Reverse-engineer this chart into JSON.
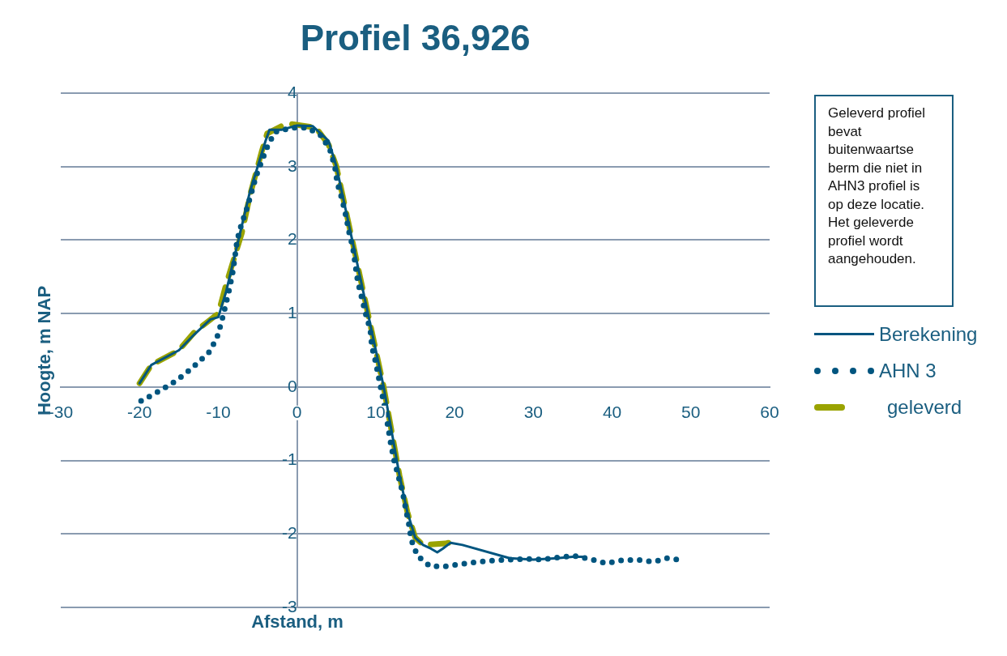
{
  "chart_data": {
    "type": "line",
    "title": "Profiel 36,926",
    "xlabel": "Afstand, m",
    "ylabel": "Hoogte, m NAP",
    "annotations": [
      "Geleverd profiel bevat buitenwaartse berm die niet in AHN3 profiel is op deze locatie. Het geleverde profiel wordt aangehouden."
    ],
    "xlim": [
      -30,
      60
    ],
    "xticks": [
      -30,
      -20,
      -10,
      0,
      10,
      20,
      30,
      40,
      50,
      60
    ],
    "ylim": [
      -3,
      4
    ],
    "yticks": [
      -3,
      -2,
      -1,
      0,
      1,
      2,
      3,
      4
    ],
    "grid": "y",
    "legend": "right",
    "marker": "none",
    "series": [
      {
        "name": "Berekening",
        "color": "#00557f",
        "line_style": "solid",
        "x": [
          -20,
          -18.5,
          -15,
          -13,
          -11,
          -10,
          -9,
          -8,
          -7,
          -6,
          -5,
          -4,
          -3.5,
          -2,
          0,
          2,
          4,
          5,
          6,
          7,
          8,
          9,
          10,
          11,
          12,
          13,
          14,
          15,
          16,
          17,
          17.8,
          18.5,
          19.5,
          21,
          27,
          30,
          33,
          35,
          36.3
        ],
        "values": [
          0.05,
          0.3,
          0.5,
          0.72,
          0.92,
          0.95,
          1.3,
          1.75,
          2.2,
          2.65,
          3.0,
          3.35,
          3.5,
          3.5,
          3.56,
          3.55,
          3.35,
          3.0,
          2.5,
          2.0,
          1.5,
          1.0,
          0.5,
          0.0,
          -0.6,
          -1.2,
          -1.7,
          -2.05,
          -2.15,
          -2.2,
          -2.25,
          -2.2,
          -2.12,
          -2.15,
          -2.33,
          -2.35,
          -2.33,
          -2.31,
          -2.31
        ]
      },
      {
        "name": "AHN 3",
        "color": "#00557f",
        "line_style": "dotted",
        "x": [
          -19.8,
          -17.9,
          -16.0,
          -14.3,
          -12.7,
          -11.2,
          -10.2,
          -9.6,
          -9.1,
          -8.6,
          -8.2,
          -7.9,
          -7.6,
          -7.1,
          -6.4,
          -5.8,
          -5.2,
          -4.5,
          -3.7,
          -2.8,
          -0.7,
          1.3,
          3.1,
          4.2,
          4.8,
          5.1,
          5.7,
          6.2,
          6.6,
          7.1,
          7.4,
          7.7,
          8.2,
          8.7,
          9.3,
          9.5,
          10.0,
          10.4,
          10.8,
          11.2,
          11.9,
          12.3,
          13.4,
          13.8,
          14.2,
          14.5,
          15.3,
          16.9,
          18.9,
          20.9,
          22.9,
          25,
          27,
          29,
          31.1,
          33.1,
          35.2,
          37.2,
          39.2,
          41.2,
          43.1,
          45.2,
          47,
          49
        ],
        "values": [
          -0.19,
          -0.08,
          0.04,
          0.17,
          0.32,
          0.47,
          0.66,
          0.88,
          1.1,
          1.33,
          1.54,
          1.76,
          2.0,
          2.2,
          2.42,
          2.64,
          2.87,
          3.07,
          3.29,
          3.47,
          3.53,
          3.53,
          3.42,
          3.22,
          3.0,
          2.78,
          2.56,
          2.33,
          2.11,
          1.89,
          1.66,
          1.44,
          1.22,
          1.0,
          0.78,
          0.55,
          0.33,
          0.11,
          -0.1,
          -0.32,
          -0.77,
          -0.99,
          -1.43,
          -1.66,
          -1.87,
          -2.08,
          -2.3,
          -2.44,
          -2.44,
          -2.41,
          -2.38,
          -2.36,
          -2.35,
          -2.34,
          -2.35,
          -2.32,
          -2.3,
          -2.34,
          -2.4,
          -2.36,
          -2.35,
          -2.38,
          -2.33,
          -2.36
        ]
      },
      {
        "name": "geleverd",
        "color": "#9aa300",
        "line_style": "dashed",
        "x": [
          -20,
          -18.5,
          -15,
          -13,
          -10,
          -9,
          -7,
          -6,
          -4.5,
          -3.8,
          -2,
          -0.7,
          2.4,
          4,
          5,
          6,
          7,
          8,
          9,
          10,
          11,
          12,
          13,
          14,
          15,
          16,
          18.8,
          20.2
        ],
        "values": [
          0.05,
          0.3,
          0.5,
          0.75,
          1.0,
          1.4,
          2.1,
          2.6,
          3.2,
          3.45,
          3.55,
          3.58,
          3.53,
          3.3,
          3.0,
          2.5,
          2.0,
          1.5,
          1.0,
          0.5,
          0.0,
          -0.6,
          -1.2,
          -1.7,
          -2.05,
          -2.15,
          -2.13,
          -2.1
        ]
      }
    ]
  }
}
